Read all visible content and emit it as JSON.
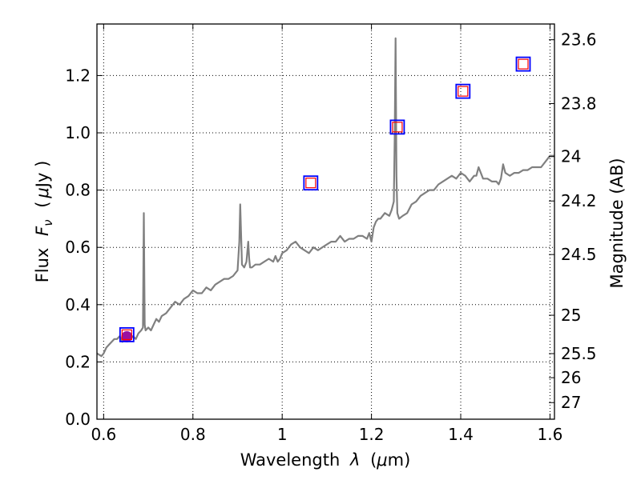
{
  "chart_data": {
    "type": "line",
    "xlabel": {
      "prefix": "Wavelength",
      "symbol": "λ",
      "unit_open": "(",
      "unit_mu": "μ",
      "unit_rest": "m)"
    },
    "ylabel": {
      "prefix": "Flux",
      "symbol_F": "F",
      "symbol_sub": "ν",
      "unit_open": "(",
      "unit_mu": "μ",
      "unit_rest": "Jy )"
    },
    "y2label": "Magnitude (AB)",
    "xlim": [
      0.585,
      1.61
    ],
    "ylim": [
      0.0,
      1.38
    ],
    "grid": true,
    "x_ticks": [
      {
        "value": 0.6,
        "label": "0.6"
      },
      {
        "value": 0.8,
        "label": "0.8"
      },
      {
        "value": 1.0,
        "label": "1"
      },
      {
        "value": 1.2,
        "label": "1.2"
      },
      {
        "value": 1.4,
        "label": "1.4"
      },
      {
        "value": 1.6,
        "label": "1.6"
      }
    ],
    "y_ticks": [
      {
        "value": 0.0,
        "label": "0.0"
      },
      {
        "value": 0.2,
        "label": "0.2"
      },
      {
        "value": 0.4,
        "label": "0.4"
      },
      {
        "value": 0.6,
        "label": "0.6"
      },
      {
        "value": 0.8,
        "label": "0.8"
      },
      {
        "value": 1.0,
        "label": "1.0"
      },
      {
        "value": 1.2,
        "label": "1.2"
      }
    ],
    "y2_ticks": [
      {
        "flux": 1.325,
        "label": "23.6"
      },
      {
        "flux": 1.102,
        "label": "23.8"
      },
      {
        "flux": 0.917,
        "label": "24"
      },
      {
        "flux": 0.762,
        "label": "24.2"
      },
      {
        "flux": 0.575,
        "label": "24.5"
      },
      {
        "flux": 0.363,
        "label": "25"
      },
      {
        "flux": 0.229,
        "label": "25.5"
      },
      {
        "flux": 0.145,
        "label": "26"
      },
      {
        "flux": 0.058,
        "label": "27"
      }
    ],
    "spectrum": {
      "color": "#808080",
      "x": [
        0.585,
        0.595,
        0.6,
        0.606,
        0.612,
        0.618,
        0.624,
        0.63,
        0.636,
        0.642,
        0.648,
        0.654,
        0.66,
        0.666,
        0.672,
        0.678,
        0.684,
        0.688,
        0.69,
        0.692,
        0.694,
        0.7,
        0.706,
        0.712,
        0.718,
        0.724,
        0.73,
        0.74,
        0.75,
        0.76,
        0.77,
        0.78,
        0.79,
        0.8,
        0.81,
        0.82,
        0.83,
        0.84,
        0.85,
        0.86,
        0.87,
        0.88,
        0.89,
        0.9,
        0.904,
        0.906,
        0.91,
        0.915,
        0.92,
        0.924,
        0.926,
        0.928,
        0.932,
        0.94,
        0.95,
        0.96,
        0.97,
        0.98,
        0.985,
        0.99,
        0.995,
        1.0,
        1.01,
        1.02,
        1.03,
        1.04,
        1.05,
        1.06,
        1.07,
        1.08,
        1.09,
        1.1,
        1.11,
        1.12,
        1.13,
        1.14,
        1.15,
        1.16,
        1.17,
        1.18,
        1.19,
        1.195,
        1.2,
        1.205,
        1.21,
        1.215,
        1.22,
        1.23,
        1.24,
        1.245,
        1.25,
        1.252,
        1.254,
        1.256,
        1.258,
        1.262,
        1.27,
        1.28,
        1.29,
        1.3,
        1.31,
        1.32,
        1.33,
        1.34,
        1.35,
        1.36,
        1.37,
        1.38,
        1.39,
        1.4,
        1.41,
        1.42,
        1.425,
        1.43,
        1.435,
        1.44,
        1.45,
        1.46,
        1.47,
        1.48,
        1.485,
        1.49,
        1.495,
        1.5,
        1.51,
        1.52,
        1.53,
        1.54,
        1.55,
        1.56,
        1.57,
        1.58,
        1.59,
        1.6,
        1.61
      ],
      "y": [
        0.23,
        0.22,
        0.23,
        0.25,
        0.26,
        0.27,
        0.28,
        0.28,
        0.29,
        0.27,
        0.29,
        0.28,
        0.28,
        0.29,
        0.28,
        0.3,
        0.31,
        0.32,
        0.72,
        0.33,
        0.31,
        0.32,
        0.31,
        0.33,
        0.35,
        0.34,
        0.36,
        0.37,
        0.39,
        0.41,
        0.4,
        0.42,
        0.43,
        0.45,
        0.44,
        0.44,
        0.46,
        0.45,
        0.47,
        0.48,
        0.49,
        0.49,
        0.5,
        0.52,
        0.62,
        0.75,
        0.54,
        0.53,
        0.55,
        0.62,
        0.56,
        0.53,
        0.53,
        0.54,
        0.54,
        0.55,
        0.56,
        0.55,
        0.57,
        0.55,
        0.56,
        0.58,
        0.59,
        0.61,
        0.62,
        0.6,
        0.59,
        0.58,
        0.6,
        0.59,
        0.6,
        0.61,
        0.62,
        0.62,
        0.64,
        0.62,
        0.63,
        0.63,
        0.64,
        0.64,
        0.63,
        0.65,
        0.62,
        0.67,
        0.69,
        0.7,
        0.7,
        0.72,
        0.71,
        0.73,
        0.76,
        0.98,
        1.33,
        0.85,
        0.72,
        0.7,
        0.71,
        0.72,
        0.75,
        0.76,
        0.78,
        0.79,
        0.8,
        0.8,
        0.82,
        0.83,
        0.84,
        0.85,
        0.84,
        0.86,
        0.85,
        0.83,
        0.84,
        0.85,
        0.85,
        0.88,
        0.84,
        0.84,
        0.83,
        0.83,
        0.82,
        0.84,
        0.89,
        0.86,
        0.85,
        0.86,
        0.86,
        0.87,
        0.87,
        0.88,
        0.88,
        0.88,
        0.9,
        0.92,
        0.92
      ]
    },
    "photometry": [
      {
        "x": 0.652,
        "model": 0.295,
        "observed": 0.288,
        "err_lo": 0.272,
        "err_hi": 0.304,
        "observed_color": "#9a0fa0"
      },
      {
        "x": 1.064,
        "model": 0.825
      },
      {
        "x": 1.258,
        "model": 1.02
      },
      {
        "x": 1.405,
        "model": 1.145
      },
      {
        "x": 1.54,
        "model": 1.24
      }
    ],
    "marker_colors": {
      "model_outer": "#0000ff",
      "model_inner": "#ff0000"
    }
  }
}
